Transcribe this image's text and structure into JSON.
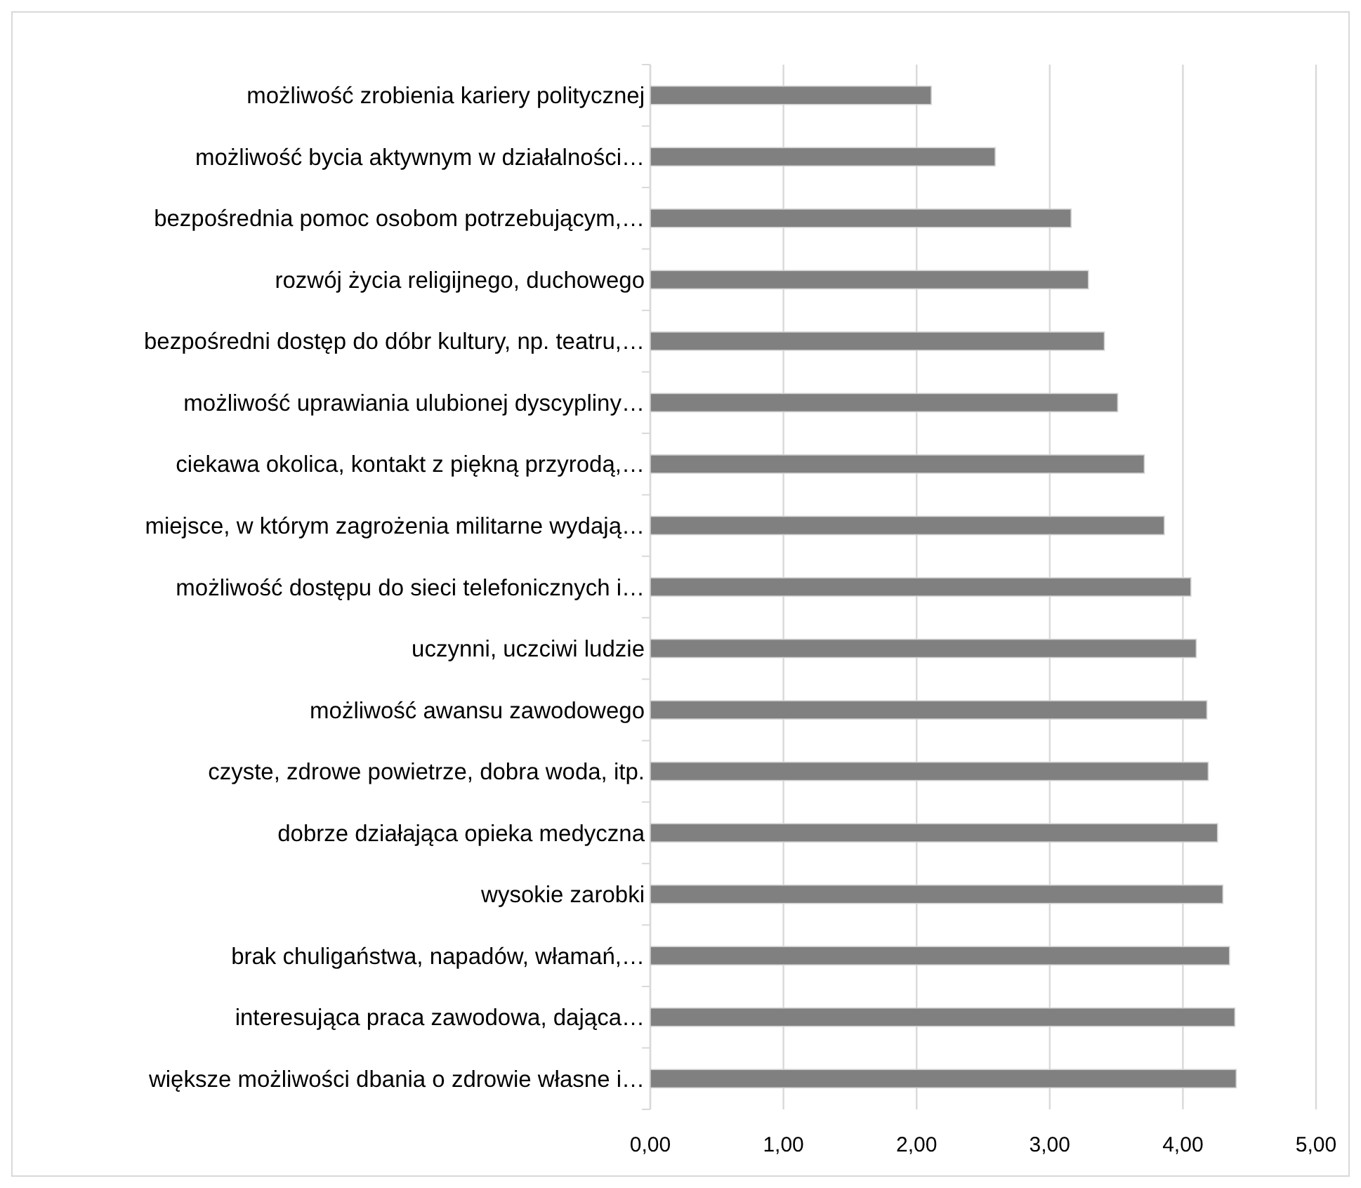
{
  "chart_data": {
    "type": "bar",
    "orientation": "horizontal",
    "categories": [
      "możliwość zrobienia kariery politycznej",
      "możliwość bycia aktywnym w działalności…",
      "bezpośrednia pomoc osobom potrzebującym,…",
      "rozwój życia religijnego, duchowego",
      "bezpośredni dostęp do dóbr kultury, np. teatru,…",
      "możliwość uprawiania ulubionej dyscypliny…",
      "ciekawa okolica, kontakt z piękną przyrodą,…",
      "miejsce, w którym zagrożenia militarne wydają…",
      "możliwość dostępu do sieci telefonicznych i…",
      "uczynni, uczciwi ludzie",
      "możliwość awansu zawodowego",
      "czyste, zdrowe powietrze, dobra woda, itp.",
      "dobrze działająca opieka medyczna",
      "wysokie zarobki",
      "brak chuligaństwa, napadów, włamań,…",
      "interesująca praca zawodowa, dająca…",
      "większe możliwości dbania o zdrowie własne i…"
    ],
    "values": [
      2.11,
      2.59,
      3.16,
      3.29,
      3.41,
      3.51,
      3.71,
      3.86,
      4.06,
      4.1,
      4.18,
      4.19,
      4.26,
      4.3,
      4.35,
      4.39,
      4.4
    ],
    "color": "#808080",
    "xlim": [
      0,
      5
    ],
    "xticks": [
      {
        "value": 0,
        "label": "0,00"
      },
      {
        "value": 1,
        "label": "1,00"
      },
      {
        "value": 2,
        "label": "2,00"
      },
      {
        "value": 3,
        "label": "3,00"
      },
      {
        "value": 4,
        "label": "4,00"
      },
      {
        "value": 5,
        "label": "5,00"
      }
    ],
    "grid": "x"
  }
}
